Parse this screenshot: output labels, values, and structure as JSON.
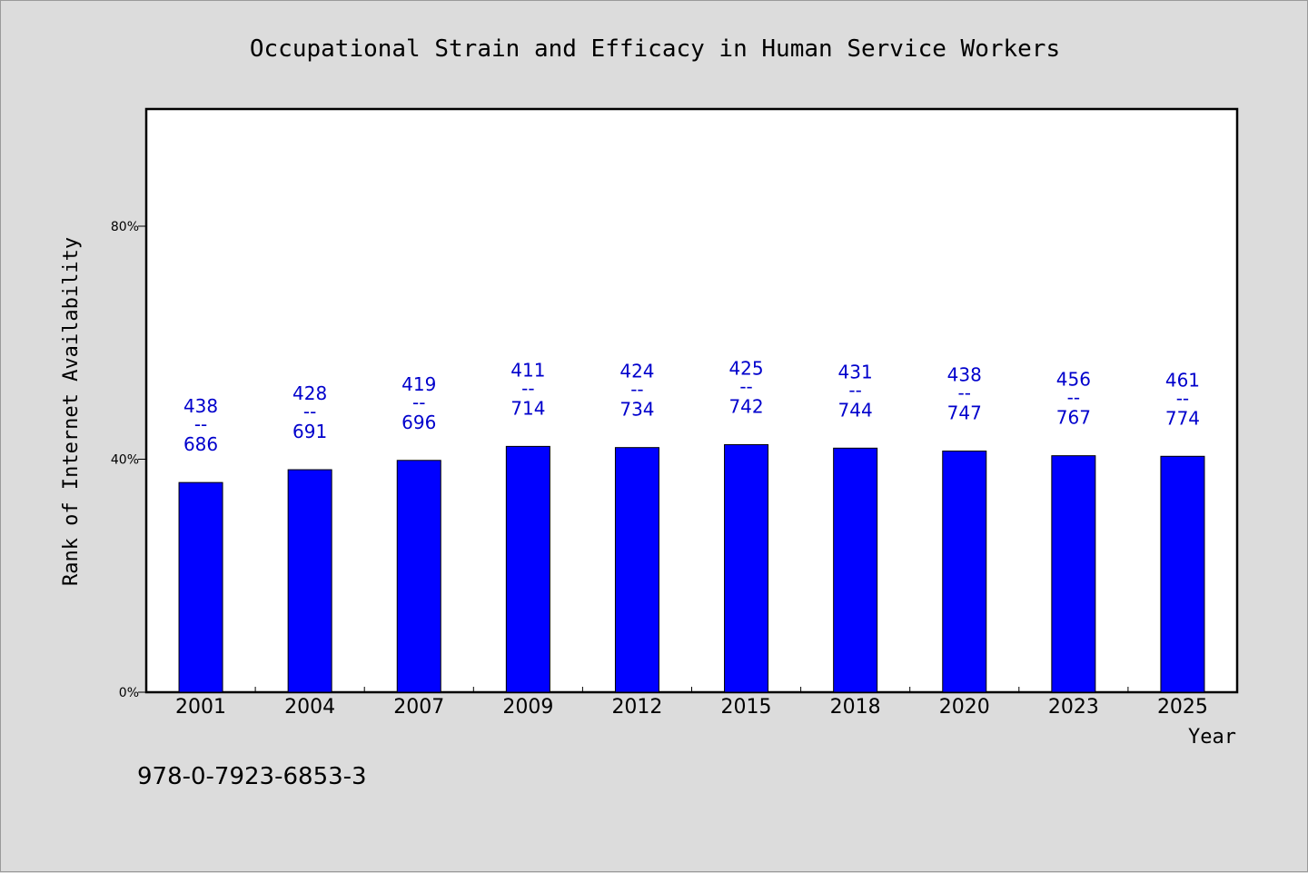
{
  "chart_data": {
    "type": "bar",
    "title": "Occupational Strain and Efficacy in Human Service Workers",
    "xlabel": "Year",
    "ylabel": "Rank of Internet Availability",
    "categories": [
      "2001",
      "2004",
      "2007",
      "2009",
      "2012",
      "2015",
      "2018",
      "2020",
      "2023",
      "2025"
    ],
    "values": [
      36,
      38.2,
      39.8,
      42.2,
      42,
      42.5,
      41.9,
      41.4,
      40.6,
      40.5
    ],
    "data_labels": [
      {
        "top": "438",
        "sep": "--",
        "bottom": "686"
      },
      {
        "top": "428",
        "sep": "--",
        "bottom": "691"
      },
      {
        "top": "419",
        "sep": "--",
        "bottom": "696"
      },
      {
        "top": "411",
        "sep": "--",
        "bottom": "714"
      },
      {
        "top": "424",
        "sep": "--",
        "bottom": "734"
      },
      {
        "top": "425",
        "sep": "--",
        "bottom": "742"
      },
      {
        "top": "431",
        "sep": "--",
        "bottom": "744"
      },
      {
        "top": "438",
        "sep": "--",
        "bottom": "747"
      },
      {
        "top": "456",
        "sep": "--",
        "bottom": "767"
      },
      {
        "top": "461",
        "sep": "--",
        "bottom": "774"
      }
    ],
    "ylim": [
      0,
      100
    ],
    "yticks": [
      0,
      40,
      80
    ],
    "ytick_labels": [
      "0%",
      "40%",
      "80%"
    ],
    "grid": false,
    "bar_color": "#0000ff",
    "label_color": "#0000cc"
  },
  "footer": {
    "isbn": "978-0-7923-6853-3"
  }
}
